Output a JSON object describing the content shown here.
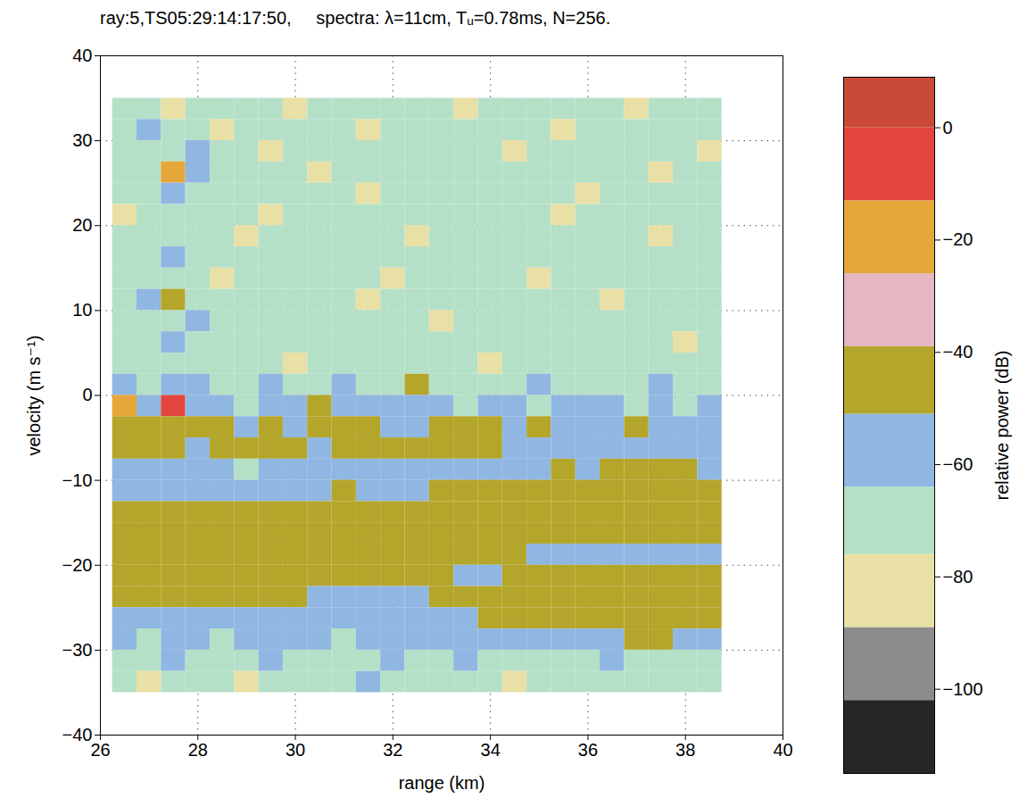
{
  "chart_data": {
    "type": "heatmap",
    "title": "ray:5,TS05:29:14:17:50,     spectra: λ=11cm, Tᵤ=0.78ms, N=256.",
    "x_label": "range (km)",
    "y_label": "velocity (m s⁻¹)",
    "xlim": [
      26,
      40
    ],
    "ylim": [
      -40,
      40
    ],
    "xticks": [
      26,
      28,
      30,
      32,
      34,
      36,
      38,
      40
    ],
    "yticks": [
      -40,
      -30,
      -20,
      -10,
      0,
      10,
      20,
      30,
      40
    ],
    "grid": true,
    "range_edges": [
      26.25,
      26.75,
      27.25,
      27.75,
      28.25,
      28.75,
      29.25,
      29.75,
      30.25,
      30.75,
      31.25,
      31.75,
      32.25,
      32.75,
      33.25,
      33.75,
      34.25,
      34.75,
      35.25,
      35.75,
      36.25,
      36.75,
      37.25,
      37.75,
      38.25,
      38.75
    ],
    "velocity_edges": [
      35,
      32.5,
      30,
      27.5,
      25,
      22.5,
      20,
      17.5,
      15,
      12.5,
      10,
      7.5,
      5,
      2.5,
      0,
      -2.5,
      -5,
      -7.5,
      -10,
      -12.5,
      -15,
      -17.5,
      -20,
      -22.5,
      -25,
      -27.5,
      -30,
      -32.5,
      -35
    ],
    "cells": [
      [
        -70,
        -70,
        -84,
        -70,
        -70,
        -70,
        -70,
        -84,
        -70,
        -70,
        -70,
        -70,
        -70,
        -70,
        -84,
        -70,
        -70,
        -70,
        -70,
        -70,
        -70,
        -84,
        -70,
        -70,
        -70
      ],
      [
        -70,
        -57,
        -70,
        -70,
        -84,
        -70,
        -70,
        -70,
        -70,
        -70,
        -84,
        -70,
        -70,
        -70,
        -70,
        -70,
        -70,
        -70,
        -84,
        -70,
        -70,
        -70,
        -70,
        -70,
        -70
      ],
      [
        -70,
        -70,
        -70,
        -57,
        -70,
        -70,
        -84,
        -70,
        -70,
        -70,
        -70,
        -70,
        -70,
        -70,
        -70,
        -70,
        -84,
        -70,
        -70,
        -70,
        -70,
        -70,
        -70,
        -70,
        -84
      ],
      [
        -70,
        -70,
        -22,
        -57,
        -70,
        -70,
        -70,
        -70,
        -84,
        -70,
        -70,
        -70,
        -70,
        -70,
        -70,
        -70,
        -70,
        -70,
        -70,
        -70,
        -70,
        -70,
        -84,
        -70,
        -70
      ],
      [
        -70,
        -70,
        -57,
        -70,
        -70,
        -70,
        -70,
        -70,
        -70,
        -70,
        -84,
        -70,
        -70,
        -70,
        -70,
        -70,
        -70,
        -70,
        -70,
        -84,
        -70,
        -70,
        -70,
        -70,
        -70
      ],
      [
        -84,
        -70,
        -70,
        -70,
        -70,
        -70,
        -84,
        -70,
        -70,
        -70,
        -70,
        -70,
        -70,
        -70,
        -70,
        -70,
        -70,
        -70,
        -84,
        -70,
        -70,
        -70,
        -70,
        -70,
        -70
      ],
      [
        -70,
        -70,
        -70,
        -70,
        -70,
        -84,
        -70,
        -70,
        -70,
        -70,
        -70,
        -70,
        -84,
        -70,
        -70,
        -70,
        -70,
        -70,
        -70,
        -70,
        -70,
        -70,
        -84,
        -70,
        -70
      ],
      [
        -70,
        -70,
        -57,
        -70,
        -70,
        -70,
        -70,
        -70,
        -70,
        -70,
        -70,
        -70,
        -70,
        -70,
        -70,
        -70,
        -70,
        -70,
        -70,
        -70,
        -70,
        -70,
        -70,
        -70,
        -70
      ],
      [
        -70,
        -70,
        -70,
        -70,
        -84,
        -70,
        -70,
        -70,
        -70,
        -70,
        -70,
        -84,
        -70,
        -70,
        -70,
        -70,
        -70,
        -84,
        -70,
        -70,
        -70,
        -70,
        -70,
        -70,
        -70
      ],
      [
        -70,
        -57,
        -45,
        -70,
        -70,
        -70,
        -70,
        -70,
        -70,
        -70,
        -84,
        -70,
        -70,
        -70,
        -70,
        -70,
        -70,
        -70,
        -70,
        -70,
        -84,
        -70,
        -70,
        -70,
        -70
      ],
      [
        -70,
        -70,
        -70,
        -57,
        -70,
        -70,
        -70,
        -70,
        -70,
        -70,
        -70,
        -70,
        -70,
        -84,
        -70,
        -70,
        -70,
        -70,
        -70,
        -70,
        -70,
        -70,
        -70,
        -70,
        -70
      ],
      [
        -70,
        -70,
        -57,
        -70,
        -70,
        -70,
        -70,
        -70,
        -70,
        -70,
        -70,
        -70,
        -70,
        -70,
        -70,
        -70,
        -70,
        -70,
        -70,
        -70,
        -70,
        -70,
        -70,
        -84,
        -70
      ],
      [
        -70,
        -70,
        -70,
        -70,
        -70,
        -70,
        -70,
        -84,
        -70,
        -70,
        -70,
        -70,
        -70,
        -70,
        -70,
        -84,
        -70,
        -70,
        -70,
        -70,
        -70,
        -70,
        -70,
        -70,
        -70
      ],
      [
        -57,
        -70,
        -57,
        -57,
        -70,
        -70,
        -57,
        -70,
        -70,
        -57,
        -70,
        -70,
        -45,
        -70,
        -70,
        -70,
        -70,
        -57,
        -70,
        -70,
        -70,
        -70,
        -57,
        -70,
        -70
      ],
      [
        -22,
        -57,
        -5,
        -57,
        -57,
        -70,
        -57,
        -57,
        -45,
        -57,
        -57,
        -57,
        -57,
        -57,
        -70,
        -57,
        -57,
        -70,
        -57,
        -57,
        -57,
        -70,
        -57,
        -70,
        -57
      ],
      [
        -45,
        -45,
        -45,
        -45,
        -45,
        -57,
        -45,
        -57,
        -45,
        -45,
        -45,
        -57,
        -57,
        -45,
        -45,
        -45,
        -57,
        -45,
        -57,
        -57,
        -57,
        -45,
        -57,
        -57,
        -57
      ],
      [
        -45,
        -45,
        -45,
        -57,
        -45,
        -45,
        -45,
        -45,
        -57,
        -45,
        -45,
        -45,
        -45,
        -45,
        -45,
        -45,
        -57,
        -57,
        -57,
        -57,
        -57,
        -57,
        -57,
        -57,
        -57
      ],
      [
        -57,
        -57,
        -57,
        -57,
        -57,
        -70,
        -57,
        -57,
        -57,
        -57,
        -57,
        -57,
        -57,
        -57,
        -57,
        -57,
        -57,
        -57,
        -45,
        -57,
        -45,
        -45,
        -45,
        -45,
        -57
      ],
      [
        -57,
        -57,
        -57,
        -57,
        -57,
        -57,
        -57,
        -57,
        -57,
        -45,
        -57,
        -57,
        -57,
        -45,
        -45,
        -45,
        -45,
        -45,
        -45,
        -45,
        -45,
        -45,
        -45,
        -45,
        -45
      ],
      [
        -45,
        -45,
        -45,
        -45,
        -45,
        -45,
        -45,
        -45,
        -45,
        -45,
        -45,
        -45,
        -45,
        -45,
        -45,
        -45,
        -45,
        -45,
        -45,
        -45,
        -45,
        -45,
        -45,
        -45,
        -45
      ],
      [
        -45,
        -45,
        -45,
        -45,
        -45,
        -45,
        -45,
        -45,
        -45,
        -45,
        -45,
        -45,
        -45,
        -45,
        -45,
        -45,
        -45,
        -45,
        -45,
        -45,
        -45,
        -45,
        -45,
        -45,
        -45
      ],
      [
        -45,
        -45,
        -45,
        -45,
        -45,
        -45,
        -45,
        -45,
        -45,
        -45,
        -45,
        -45,
        -45,
        -45,
        -45,
        -45,
        -45,
        -57,
        -57,
        -57,
        -57,
        -57,
        -57,
        -57,
        -57
      ],
      [
        -45,
        -45,
        -45,
        -45,
        -45,
        -45,
        -45,
        -45,
        -45,
        -45,
        -45,
        -45,
        -45,
        -45,
        -57,
        -57,
        -45,
        -45,
        -45,
        -45,
        -45,
        -45,
        -45,
        -45,
        -45
      ],
      [
        -45,
        -45,
        -45,
        -45,
        -45,
        -45,
        -45,
        -45,
        -57,
        -57,
        -57,
        -57,
        -57,
        -45,
        -45,
        -45,
        -45,
        -45,
        -45,
        -45,
        -45,
        -45,
        -45,
        -45,
        -45
      ],
      [
        -57,
        -57,
        -57,
        -57,
        -57,
        -57,
        -57,
        -57,
        -57,
        -57,
        -57,
        -57,
        -57,
        -57,
        -57,
        -45,
        -45,
        -45,
        -45,
        -45,
        -45,
        -45,
        -45,
        -45,
        -45
      ],
      [
        -57,
        -70,
        -57,
        -57,
        -70,
        -57,
        -57,
        -57,
        -57,
        -70,
        -57,
        -57,
        -57,
        -57,
        -57,
        -57,
        -57,
        -57,
        -57,
        -57,
        -57,
        -45,
        -45,
        -57,
        -57
      ],
      [
        -70,
        -70,
        -57,
        -70,
        -70,
        -70,
        -57,
        -70,
        -70,
        -70,
        -70,
        -57,
        -70,
        -70,
        -57,
        -70,
        -70,
        -70,
        -70,
        -70,
        -57,
        -70,
        -70,
        -70,
        -70
      ],
      [
        -70,
        -84,
        -70,
        -70,
        -70,
        -84,
        -70,
        -70,
        -70,
        -70,
        -57,
        -70,
        -70,
        -70,
        -70,
        -70,
        -84,
        -70,
        -70,
        -70,
        -70,
        -70,
        -70,
        -70,
        -70
      ]
    ],
    "colorbar": {
      "label": "relative power (dB)",
      "lim": [
        -115,
        9
      ],
      "ticks": [
        -100,
        -80,
        -60,
        -40,
        -20,
        0
      ],
      "bounds": [
        -115,
        -102,
        -89,
        -76,
        -64,
        -51,
        -39,
        -26,
        -13,
        0,
        9
      ],
      "colors": [
        "#262626",
        "#8c8c8c",
        "#e9e0a6",
        "#b5e0c8",
        "#90b6e2",
        "#b4a62a",
        "#e4b7c2",
        "#e6a73a",
        "#e2463c",
        "#c84a36"
      ]
    }
  }
}
